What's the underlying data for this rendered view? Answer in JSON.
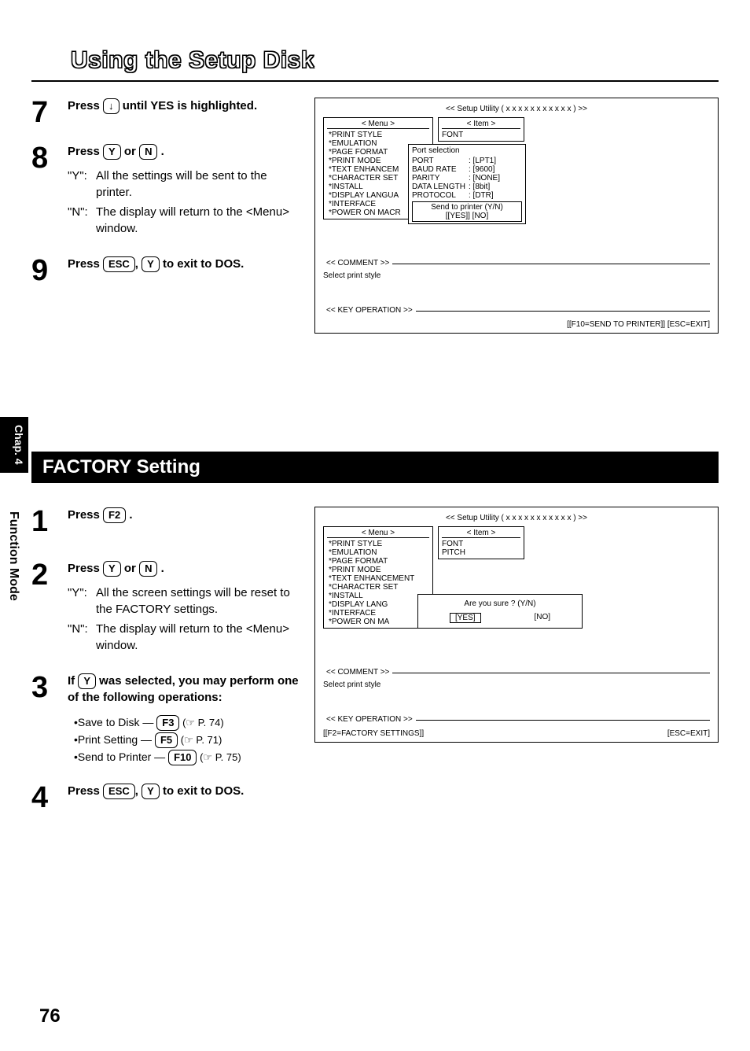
{
  "page_title": "Using the Setup Disk",
  "page_number": "76",
  "sidebar": {
    "tab": "Chap. 4",
    "label": "Function Mode"
  },
  "upper": {
    "step7": {
      "num": "7",
      "text_before": "Press ",
      "key": "↓",
      "text_after": " until YES is highlighted."
    },
    "step8": {
      "num": "8",
      "text_before": "Press ",
      "key1": "Y",
      "text_mid": " or ",
      "key2": "N",
      "text_after": " .",
      "y_label": "\"Y\":",
      "y_text": "All the settings will be sent to the printer.",
      "n_label": "\"N\":",
      "n_text": "The display will return to the <Menu> window."
    },
    "step9": {
      "num": "9",
      "text_before": "Press ",
      "key1": "ESC",
      "text_mid": ", ",
      "key2": "Y",
      "text_after": " to exit to DOS."
    }
  },
  "panel1": {
    "title": "<< Setup Utility ( x x x x x x x x x x x ) >>",
    "menu_header": "< Menu >",
    "menu_items": [
      "*PRINT STYLE",
      "*EMULATION",
      "*PAGE FORMAT",
      "*PRINT MODE",
      "*TEXT ENHANCEM",
      "*CHARACTER SET",
      "*INSTALL",
      "*DISPLAY LANGUA",
      "*INTERFACE",
      "*POWER ON MACR"
    ],
    "item_header": "< Item >",
    "item_items": [
      "FONT"
    ],
    "port_title": "Port selection",
    "port_rows": [
      {
        "k": "PORT",
        "v": ": [LPT1]"
      },
      {
        "k": "BAUD RATE",
        "v": ": [9600]"
      },
      {
        "k": "PARITY",
        "v": ": [NONE]"
      },
      {
        "k": "DATA LENGTH",
        "v": ": [8bit]"
      },
      {
        "k": "PROTOCOL",
        "v": ": [DTR]"
      }
    ],
    "send_line1": "Send to printer   (Y/N)",
    "send_line2": "[[YES]]   [NO]",
    "comment_label": "<< COMMENT >>",
    "comment_text": "Select print style",
    "keyop_label": "<<  KEY OPERATION  >>",
    "keyop_text": "[[F10=SEND TO PRINTER]] [ESC=EXIT]"
  },
  "section_header": "FACTORY Setting",
  "lower": {
    "step1": {
      "num": "1",
      "text_before": "Press  ",
      "key": "F2",
      "text_after": " ."
    },
    "step2": {
      "num": "2",
      "text_before": "Press ",
      "key1": "Y",
      "text_mid": " or ",
      "key2": "N",
      "text_after": " .",
      "y_label": "\"Y\":",
      "y_text": "All the screen settings will be reset to the FACTORY settings.",
      "n_label": "\"N\":",
      "n_text": "The display will return to the <Menu> window."
    },
    "step3": {
      "num": "3",
      "line1_before": "If ",
      "line1_key": "Y",
      "line1_after": " was selected, you may perform one of the following operations:",
      "bullets": [
        {
          "label": "•Save to Disk — ",
          "key": "F3",
          "ref": "  (☞ P. 74)"
        },
        {
          "label": "•Print Setting — ",
          "key": "F5",
          "ref": "  (☞ P. 71)"
        },
        {
          "label": "•Send to Printer — ",
          "key": "F10",
          "ref": "  (☞ P. 75)"
        }
      ]
    },
    "step4": {
      "num": "4",
      "text_before": "Press ",
      "key1": "ESC",
      "text_mid": ", ",
      "key2": "Y",
      "text_after": " to exit to DOS."
    }
  },
  "panel2": {
    "title": "<< Setup Utility ( x x x x x x x x x x x ) >>",
    "menu_header": "< Menu >",
    "menu_items": [
      "*PRINT STYLE",
      "*EMULATION",
      "*PAGE FORMAT",
      "*PRINT MODE",
      "*TEXT ENHANCEMENT",
      "*CHARACTER SET",
      "*INSTALL",
      "*DISPLAY LANG",
      "*INTERFACE",
      "*POWER ON MA"
    ],
    "item_header": "< Item >",
    "item_items": [
      "FONT",
      "PITCH"
    ],
    "sure_text": "Are you sure ? (Y/N)",
    "sure_yes": "[YES]",
    "sure_no": "[NO]",
    "comment_label": "<< COMMENT >>",
    "comment_text": "Select print style",
    "keyop_label": "<<  KEY OPERATION  >>",
    "keyop_left": "[[F2=FACTORY SETTINGS]]",
    "keyop_right": "[ESC=EXIT]"
  }
}
